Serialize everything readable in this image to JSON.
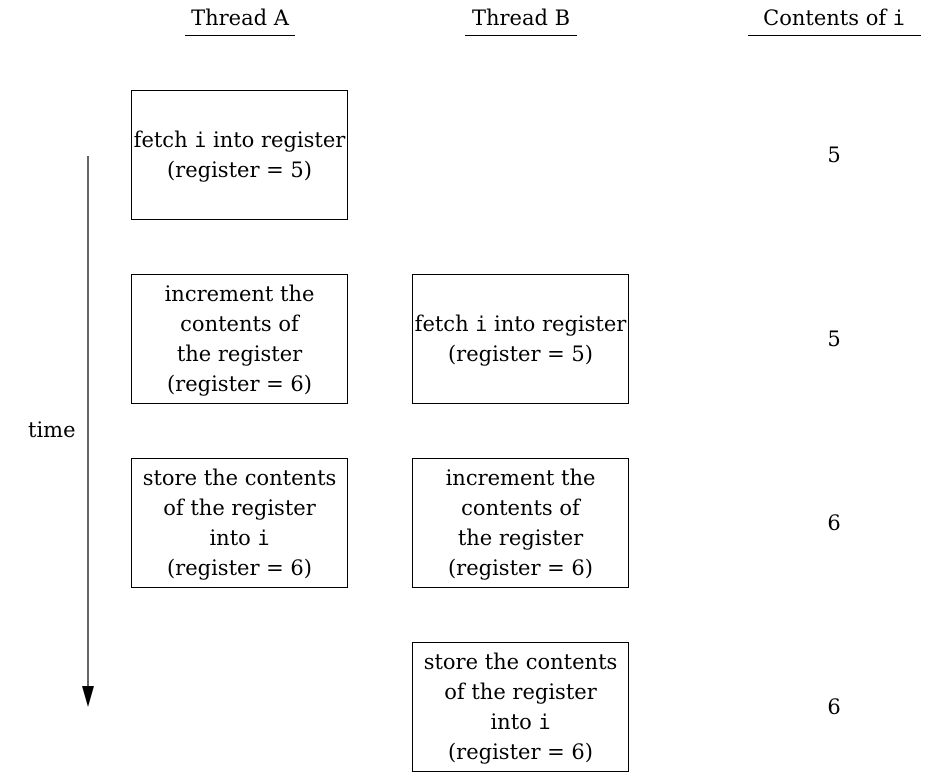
{
  "headers": {
    "thread_a": "Thread A",
    "thread_b": "Thread B",
    "contents_prefix": "Contents of ",
    "contents_var": "i"
  },
  "axis": {
    "label": "time"
  },
  "steps": {
    "a_fetch": {
      "l1_pre": "fetch ",
      "l1_var": "i",
      "l1_post": " into register",
      "l2": "(register = 5)"
    },
    "a_increment": {
      "l1": "increment the",
      "l2": "contents of",
      "l3": "the register",
      "l4": "(register = 6)"
    },
    "a_store": {
      "l1": "store the contents",
      "l2": "of the register",
      "l3_pre": "into ",
      "l3_var": "i",
      "l4": "(register = 6)"
    },
    "b_fetch": {
      "l1_pre": "fetch ",
      "l1_var": "i",
      "l1_post": " into register",
      "l2": "(register = 5)"
    },
    "b_increment": {
      "l1": "increment the",
      "l2": "contents of",
      "l3": "the register",
      "l4": "(register = 6)"
    },
    "b_store": {
      "l1": "store the contents",
      "l2": "of the register",
      "l3_pre": "into ",
      "l3_var": "i",
      "l4": "(register = 6)"
    }
  },
  "contents_values": [
    "5",
    "5",
    "6",
    "6"
  ]
}
